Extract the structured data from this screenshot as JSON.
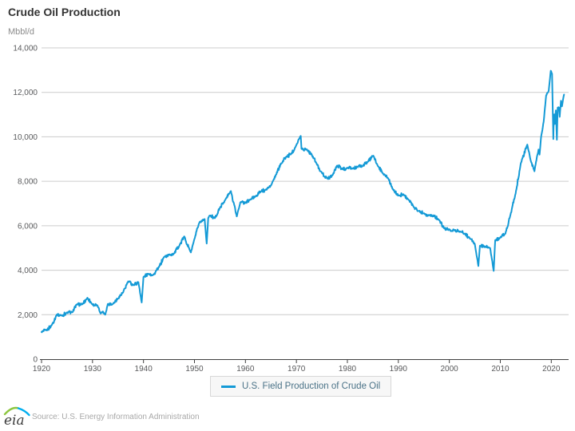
{
  "header": {
    "title": "Crude Oil Production",
    "unit_label": "Mbbl/d"
  },
  "legend": {
    "label": "U.S. Field Production of Crude Oil"
  },
  "footer": {
    "logo_text": "eia",
    "source": "Source: U.S. Energy Information Administration"
  },
  "colors": {
    "line": "#149ad6",
    "grid": "#cccccc",
    "axis": "#3f3f3f",
    "title": "#333333",
    "tick_label": "#58595b",
    "unit_label": "#8c8c8c",
    "legend_text": "#4a7287",
    "legend_bg": "#f7f7f7",
    "legend_border": "#d8d8d8",
    "source_text": "#a8a8a8",
    "logo_text_color": "#3c3c3c",
    "logo_green": "#8dc63f",
    "logo_blue": "#00aeef"
  },
  "chart_data": {
    "type": "line",
    "title": "Crude Oil Production",
    "xlabel": "",
    "ylabel": "Mbbl/d",
    "xlim": [
      1920,
      2023.4
    ],
    "ylim": [
      0,
      14000
    ],
    "x_ticks": [
      1920,
      1930,
      1940,
      1950,
      1960,
      1970,
      1980,
      1990,
      2000,
      2010,
      2020
    ],
    "y_ticks": [
      0,
      2000,
      4000,
      6000,
      8000,
      10000,
      12000,
      14000
    ],
    "grid": "horizontal",
    "legend_position": "bottom",
    "layout": {
      "noise_amplitude": 85
    },
    "series": [
      {
        "name": "U.S. Field Production of Crude Oil",
        "color": "#149ad6",
        "points": [
          [
            1920,
            1222
          ],
          [
            1921,
            1295
          ],
          [
            1922,
            1527
          ],
          [
            1923,
            2007
          ],
          [
            1924,
            1956
          ],
          [
            1925,
            2092
          ],
          [
            1926,
            2107
          ],
          [
            1927,
            2473
          ],
          [
            1928,
            2463
          ],
          [
            1929,
            2760
          ],
          [
            1930,
            2460
          ],
          [
            1931,
            2400
          ],
          [
            1931.6,
            2050
          ],
          [
            1932,
            2145
          ],
          [
            1932.5,
            2000
          ],
          [
            1933,
            2481
          ],
          [
            1934,
            2487
          ],
          [
            1935,
            2730
          ],
          [
            1936,
            3001
          ],
          [
            1937,
            3500
          ],
          [
            1938,
            3327
          ],
          [
            1939,
            3464
          ],
          [
            1939.65,
            2550
          ],
          [
            1940,
            3697
          ],
          [
            1941,
            3842
          ],
          [
            1942,
            3799
          ],
          [
            1943,
            4125
          ],
          [
            1944,
            4584
          ],
          [
            1945,
            4695
          ],
          [
            1946,
            4751
          ],
          [
            1947,
            5088
          ],
          [
            1948,
            5520
          ],
          [
            1949,
            4950
          ],
          [
            1949.3,
            4800
          ],
          [
            1950,
            5407
          ],
          [
            1951,
            6158
          ],
          [
            1952,
            6300
          ],
          [
            1952.4,
            5200
          ],
          [
            1952.7,
            6350
          ],
          [
            1953,
            6458
          ],
          [
            1954,
            6342
          ],
          [
            1955,
            6807
          ],
          [
            1956,
            7151
          ],
          [
            1957.15,
            7560
          ],
          [
            1958.3,
            6420
          ],
          [
            1959,
            7054
          ],
          [
            1960,
            7035
          ],
          [
            1961,
            7183
          ],
          [
            1962,
            7332
          ],
          [
            1963,
            7542
          ],
          [
            1964,
            7614
          ],
          [
            1965,
            7804
          ],
          [
            1966,
            8295
          ],
          [
            1967,
            8810
          ],
          [
            1968,
            9096
          ],
          [
            1969,
            9238
          ],
          [
            1970,
            9637
          ],
          [
            1970.85,
            10040
          ],
          [
            1971,
            9463
          ],
          [
            1972,
            9441
          ],
          [
            1973,
            9208
          ],
          [
            1974,
            8774
          ],
          [
            1975,
            8375
          ],
          [
            1976,
            8132
          ],
          [
            1977,
            8245
          ],
          [
            1978,
            8707
          ],
          [
            1979,
            8552
          ],
          [
            1980,
            8597
          ],
          [
            1981,
            8572
          ],
          [
            1982,
            8649
          ],
          [
            1983,
            8688
          ],
          [
            1984,
            8879
          ],
          [
            1985.1,
            9150
          ],
          [
            1986,
            8680
          ],
          [
            1987,
            8349
          ],
          [
            1988,
            8140
          ],
          [
            1989,
            7613
          ],
          [
            1990,
            7355
          ],
          [
            1991,
            7417
          ],
          [
            1992,
            7171
          ],
          [
            1993,
            6847
          ],
          [
            1994,
            6662
          ],
          [
            1995,
            6560
          ],
          [
            1996,
            6465
          ],
          [
            1997,
            6452
          ],
          [
            1998,
            6252
          ],
          [
            1999,
            5881
          ],
          [
            2000,
            5822
          ],
          [
            2001,
            5801
          ],
          [
            2002,
            5746
          ],
          [
            2003,
            5649
          ],
          [
            2004,
            5441
          ],
          [
            2005,
            5178
          ],
          [
            2005.7,
            4190
          ],
          [
            2006,
            5102
          ],
          [
            2007,
            5064
          ],
          [
            2008,
            5000
          ],
          [
            2008.7,
            3970
          ],
          [
            2009,
            5353
          ],
          [
            2010,
            5482
          ],
          [
            2011,
            5645
          ],
          [
            2012,
            6497
          ],
          [
            2013,
            7441
          ],
          [
            2014,
            8789
          ],
          [
            2015.3,
            9650
          ],
          [
            2016,
            8900
          ],
          [
            2016.7,
            8450
          ],
          [
            2017,
            8870
          ],
          [
            2017.5,
            9430
          ],
          [
            2017.7,
            9200
          ],
          [
            2018,
            9990
          ],
          [
            2018.5,
            10670
          ],
          [
            2019,
            11870
          ],
          [
            2019.5,
            12080
          ],
          [
            2019.9,
            12970
          ],
          [
            2020.15,
            12840
          ],
          [
            2020.4,
            9900
          ],
          [
            2020.45,
            10440
          ],
          [
            2020.6,
            11010
          ],
          [
            2020.7,
            10580
          ],
          [
            2020.9,
            11190
          ],
          [
            2021.1,
            9870
          ],
          [
            2021.25,
            11310
          ],
          [
            2021.5,
            11320
          ],
          [
            2021.65,
            10900
          ],
          [
            2021.9,
            11620
          ],
          [
            2022.1,
            11370
          ],
          [
            2022.3,
            11670
          ],
          [
            2022.5,
            11900
          ]
        ]
      }
    ]
  }
}
